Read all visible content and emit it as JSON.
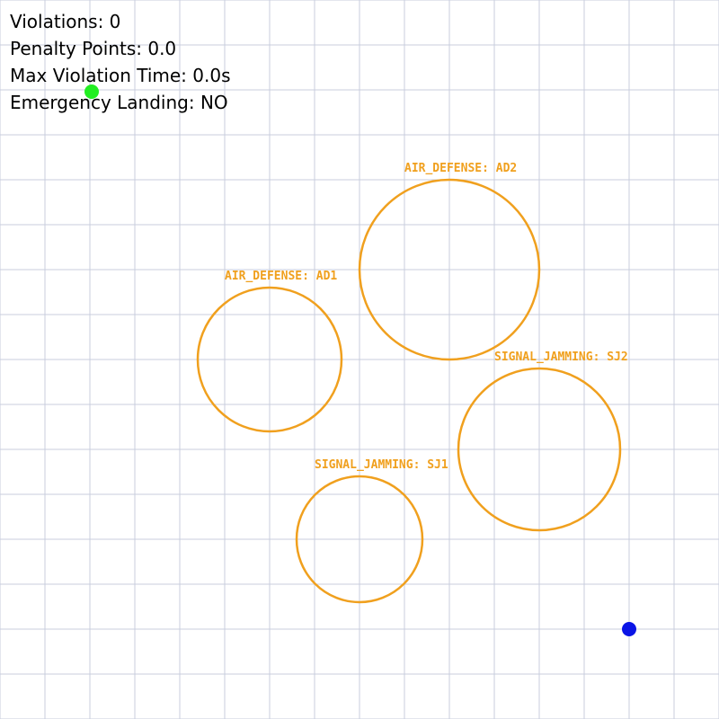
{
  "colors": {
    "background": "#ffffff",
    "grid": "#c9cede",
    "zone": "#f0a01e",
    "drone": "#22ee22",
    "target": "#0a14e6",
    "hud_text": "#000000"
  },
  "hud": {
    "violations": "Violations: 0",
    "penalty_points": "Penalty Points: 0.0",
    "max_violation_time": "Max Violation Time: 0.0s",
    "emergency_landing": "Emergency Landing: NO"
  },
  "zones": [
    {
      "id": "AD1",
      "label": "AIR_DEFENSE: AD1",
      "type": "air-defense"
    },
    {
      "id": "AD2",
      "label": "AIR_DEFENSE: AD2",
      "type": "air-defense"
    },
    {
      "id": "SJ1",
      "label": "SIGNAL_JAMMING: SJ1",
      "type": "signal-jamming"
    },
    {
      "id": "SJ2",
      "label": "SIGNAL_JAMMING: SJ2",
      "type": "signal-jamming"
    }
  ],
  "markers": {
    "drone": {
      "icon": "green-dot-icon"
    },
    "target": {
      "icon": "blue-dot-icon"
    }
  }
}
